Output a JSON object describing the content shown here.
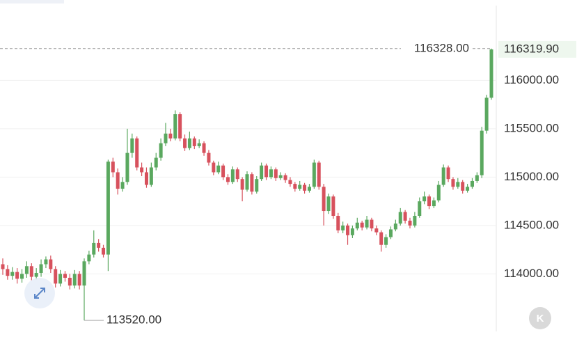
{
  "badge": "K",
  "chart_data": {
    "type": "candlestick",
    "up_color": "#5aa85f",
    "down_color": "#d7515d",
    "ylim": [
      113400,
      116830
    ],
    "yticks": [
      {
        "value": 114000,
        "label": "114000.00"
      },
      {
        "value": 114500,
        "label": "114500.00"
      },
      {
        "value": 115000,
        "label": "115000.00"
      },
      {
        "value": 115500,
        "label": "115500.00"
      },
      {
        "value": 116000,
        "label": "116000.00"
      }
    ],
    "grid": true,
    "open": [
      114100,
      114050,
      113980,
      114020,
      113950,
      114000,
      114080,
      113970,
      114010,
      114100,
      114150,
      114050,
      113900,
      114000,
      113960,
      113880,
      114000,
      113880,
      114130,
      114200,
      114320,
      114270,
      114200,
      115160,
      115050,
      114880,
      114950,
      115250,
      115400,
      115100,
      115050,
      114920,
      115100,
      115200,
      115350,
      115450,
      115400,
      115650,
      115400,
      115300,
      115400,
      115320,
      115350,
      115250,
      115150,
      115050,
      115120,
      115000,
      114950,
      115080,
      114980,
      114870,
      115030,
      114850,
      114980,
      115120,
      115000,
      115080,
      114990,
      115020,
      114970,
      114930,
      114880,
      114920,
      114860,
      114900,
      115150,
      114900,
      114650,
      114800,
      114600,
      114450,
      114500,
      114400,
      114470,
      114530,
      114480,
      114560,
      114470,
      114430,
      114300,
      114380,
      114460,
      114520,
      114640,
      114550,
      114500,
      114600,
      114750,
      114800,
      114700,
      114760,
      114920,
      115100,
      114980,
      114900,
      114950,
      114860,
      114900,
      114960,
      115020,
      115480,
      115820
    ],
    "high": [
      114160,
      114090,
      114070,
      114060,
      114050,
      114130,
      114110,
      114060,
      114150,
      114180,
      114190,
      114080,
      114040,
      114030,
      114000,
      114040,
      114030,
      114160,
      114240,
      114450,
      114360,
      114300,
      115180,
      115200,
      115090,
      115000,
      115500,
      115450,
      115420,
      115150,
      115100,
      115150,
      115250,
      115400,
      115560,
      115500,
      115690,
      115670,
      115440,
      115470,
      115420,
      115390,
      115370,
      115280,
      115170,
      115160,
      115140,
      115030,
      115110,
      115100,
      115000,
      115060,
      115050,
      115010,
      115150,
      115140,
      115110,
      115100,
      115050,
      115040,
      115000,
      114950,
      114960,
      114940,
      114930,
      115180,
      115170,
      114930,
      114830,
      114820,
      114630,
      114540,
      114520,
      114500,
      114580,
      114550,
      114600,
      114580,
      114500,
      114450,
      114410,
      114490,
      114560,
      114680,
      114660,
      114580,
      114640,
      114790,
      114850,
      114820,
      114790,
      114960,
      115130,
      115120,
      115000,
      114990,
      114970,
      114930,
      114990,
      115050,
      115520,
      115850,
      116328
    ],
    "low": [
      113990,
      113940,
      113940,
      113900,
      113910,
      113960,
      113930,
      113940,
      113970,
      114060,
      114010,
      113860,
      113870,
      113920,
      113840,
      113850,
      113840,
      113520,
      114100,
      114170,
      114230,
      114170,
      114030,
      115000,
      114820,
      114850,
      114920,
      115200,
      115070,
      115010,
      114890,
      114900,
      115070,
      115170,
      115320,
      115370,
      115380,
      115370,
      115270,
      115280,
      115290,
      115300,
      115220,
      115120,
      115020,
      115030,
      114970,
      114920,
      114930,
      114950,
      114750,
      114850,
      114820,
      114830,
      114960,
      114970,
      114980,
      114960,
      114970,
      114940,
      114900,
      114850,
      114860,
      114830,
      114840,
      114880,
      114870,
      114500,
      114620,
      114570,
      114420,
      114420,
      114300,
      114370,
      114450,
      114450,
      114460,
      114440,
      114400,
      114230,
      114270,
      114360,
      114440,
      114500,
      114520,
      114470,
      114480,
      114580,
      114720,
      114670,
      114680,
      114740,
      114900,
      114950,
      114870,
      114880,
      114830,
      114840,
      114880,
      114940,
      114990,
      115450,
      115800
    ],
    "close": [
      114050,
      113980,
      114020,
      113950,
      114000,
      114080,
      113970,
      114010,
      114100,
      114150,
      114050,
      113900,
      114000,
      113960,
      113880,
      114000,
      113880,
      114130,
      114200,
      114320,
      114270,
      114200,
      115160,
      115050,
      114880,
      114950,
      115250,
      115400,
      115100,
      115050,
      114920,
      115100,
      115200,
      115350,
      115450,
      115400,
      115650,
      115400,
      115300,
      115400,
      115320,
      115350,
      115250,
      115150,
      115050,
      115120,
      115000,
      114950,
      115080,
      114980,
      114870,
      115030,
      114850,
      114980,
      115120,
      115000,
      115080,
      114990,
      115020,
      114970,
      114930,
      114880,
      114920,
      114860,
      114900,
      115150,
      114900,
      114650,
      114800,
      114600,
      114450,
      114500,
      114400,
      114470,
      114530,
      114480,
      114560,
      114470,
      114430,
      114300,
      114380,
      114460,
      114520,
      114640,
      114550,
      114500,
      114600,
      114750,
      114800,
      114700,
      114760,
      114920,
      115100,
      114980,
      114900,
      114950,
      114860,
      114900,
      114960,
      115020,
      115480,
      115820,
      116319.9
    ],
    "max_annotation": {
      "value": 116328,
      "label": "116328.00"
    },
    "min_annotation": {
      "value": 113520,
      "label": "113520.00"
    },
    "current_price": {
      "value": 116319.9,
      "label": "116319.90"
    }
  }
}
